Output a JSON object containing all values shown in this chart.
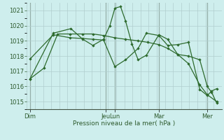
{
  "bg_color": "#ceeeed",
  "grid_color": "#b0cece",
  "line_color": "#2d6a2d",
  "xlabel": "Pression niveau de la mer( hPa )",
  "ylim": [
    1014.5,
    1021.5
  ],
  "yticks": [
    1015,
    1016,
    1017,
    1018,
    1019,
    1020,
    1021
  ],
  "day_labels": [
    "Dim",
    "Jeu",
    "Lun",
    "Mar",
    "Mer"
  ],
  "day_x": [
    13,
    133,
    148,
    218,
    295
  ],
  "xlim": [
    8,
    318
  ],
  "series": [
    {
      "x": [
        13,
        35,
        57,
        77,
        97,
        113,
        130,
        148,
        165,
        185,
        200,
        218,
        232,
        248,
        265,
        283,
        295,
        310
      ],
      "y": [
        1016.5,
        1017.2,
        1019.45,
        1019.45,
        1019.45,
        1019.45,
        1019.35,
        1019.2,
        1019.1,
        1019.0,
        1018.9,
        1018.75,
        1018.5,
        1018.1,
        1017.5,
        1016.1,
        1015.45,
        1015.0
      ]
    },
    {
      "x": [
        13,
        50,
        78,
        97,
        113,
        130,
        140,
        148,
        157,
        165,
        175,
        185,
        198,
        218,
        232,
        248,
        265,
        283,
        295,
        302,
        310
      ],
      "y": [
        1016.5,
        1019.5,
        1019.8,
        1019.1,
        1018.7,
        1019.1,
        1020.0,
        1021.15,
        1021.25,
        1020.3,
        1018.8,
        1017.75,
        1018.05,
        1019.4,
        1019.1,
        1018.1,
        1018.0,
        1017.75,
        1016.0,
        1015.6,
        1014.9
      ]
    },
    {
      "x": [
        13,
        50,
        77,
        97,
        113,
        130,
        148,
        165,
        185,
        198,
        218,
        232,
        248,
        265,
        283,
        295,
        302,
        310
      ],
      "y": [
        1017.8,
        1019.4,
        1019.2,
        1019.15,
        1019.1,
        1019.05,
        1017.3,
        1017.75,
        1018.5,
        1019.5,
        1019.35,
        1018.7,
        1018.75,
        1018.9,
        1015.8,
        1015.4,
        1015.7,
        1015.85
      ]
    }
  ],
  "vline_color": "#556655",
  "vline_x": [
    13,
    133,
    148,
    218,
    295
  ]
}
